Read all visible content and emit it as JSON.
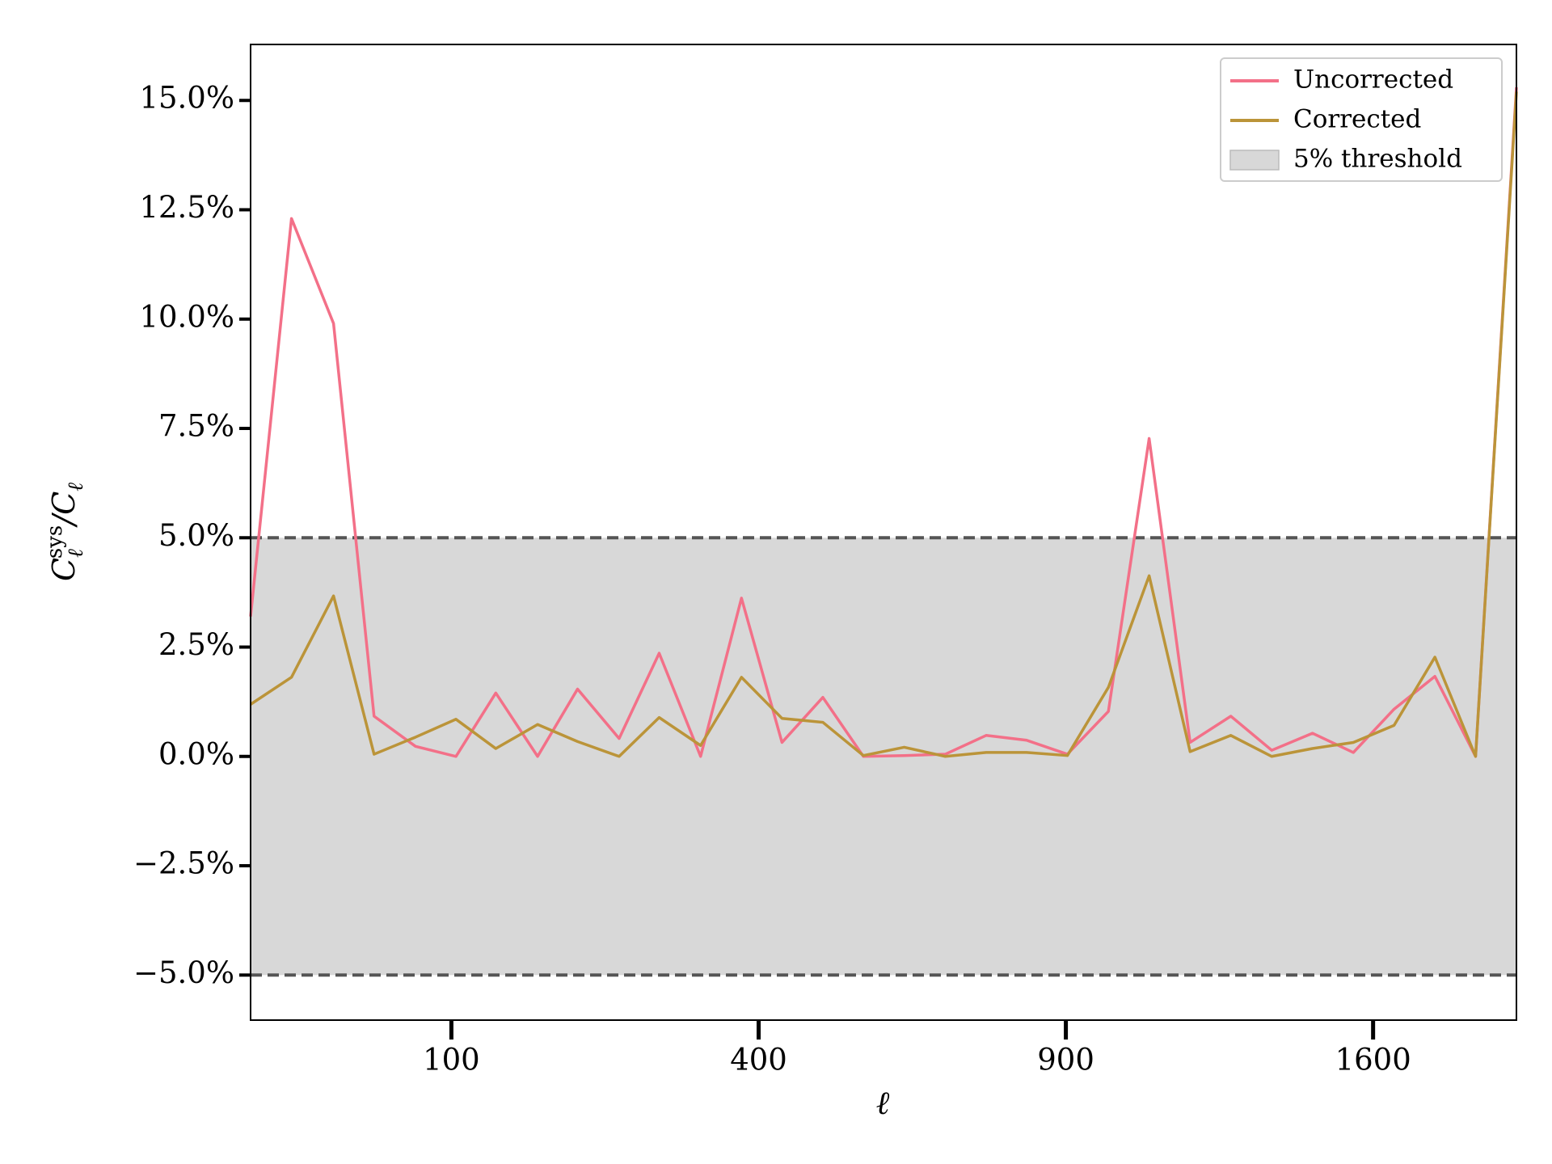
{
  "chart_data": {
    "type": "line",
    "xlabel": "ℓ",
    "ylabel": [
      "C",
      "ℓ",
      "sys",
      "/C",
      "ℓ"
    ],
    "xscale": "sqrt",
    "x": [
      12,
      23,
      38,
      56,
      78,
      103,
      131,
      164,
      199,
      239,
      281,
      328,
      378,
      431,
      488,
      548,
      612,
      680,
      751,
      825,
      903,
      985,
      1070,
      1159,
      1251,
      1347,
      1446,
      1549,
      1655,
      1765,
      1878,
      1995
    ],
    "series": [
      {
        "name": "Uncorrected",
        "color": "#f37088",
        "values": [
          3.2,
          12.3,
          9.9,
          0.92,
          0.23,
          0,
          1.45,
          0,
          1.54,
          0.41,
          2.36,
          0,
          3.62,
          0.32,
          1.35,
          0,
          0.02,
          0.05,
          0.48,
          0.37,
          0.05,
          1.03,
          7.27,
          0.32,
          0.92,
          0.14,
          0.53,
          0.09,
          1.08,
          1.83,
          0,
          15.3
        ]
      },
      {
        "name": "Corrected",
        "color": "#bb9439",
        "values": [
          1.19,
          1.81,
          3.67,
          0.05,
          0.44,
          0.85,
          0.18,
          0.73,
          0.34,
          0,
          0.89,
          0.25,
          1.81,
          0.87,
          0.78,
          0.02,
          0.21,
          0,
          0.09,
          0.09,
          0.02,
          1.58,
          4.13,
          0.11,
          0.48,
          0,
          0.18,
          0.32,
          0.71,
          2.27,
          0,
          15.2
        ]
      }
    ],
    "threshold": {
      "name": "5% threshold",
      "lower": -5,
      "upper": 5,
      "color": "#d8d8d8",
      "line_color": "#555555"
    },
    "xlim": [
      12,
      1995
    ],
    "ylim": [
      -6.03,
      16.28
    ],
    "xticks": [
      100,
      400,
      900,
      1600
    ],
    "yticks": [
      {
        "value": -5,
        "label": "−5.0%"
      },
      {
        "value": -2.5,
        "label": "−2.5%"
      },
      {
        "value": 0,
        "label": "0.0%"
      },
      {
        "value": 2.5,
        "label": "2.5%"
      },
      {
        "value": 5,
        "label": "5.0%"
      },
      {
        "value": 7.5,
        "label": "7.5%"
      },
      {
        "value": 10,
        "label": "10.0%"
      },
      {
        "value": 12.5,
        "label": "12.5%"
      },
      {
        "value": 15,
        "label": "15.0%"
      }
    ],
    "legend": "upper right"
  }
}
